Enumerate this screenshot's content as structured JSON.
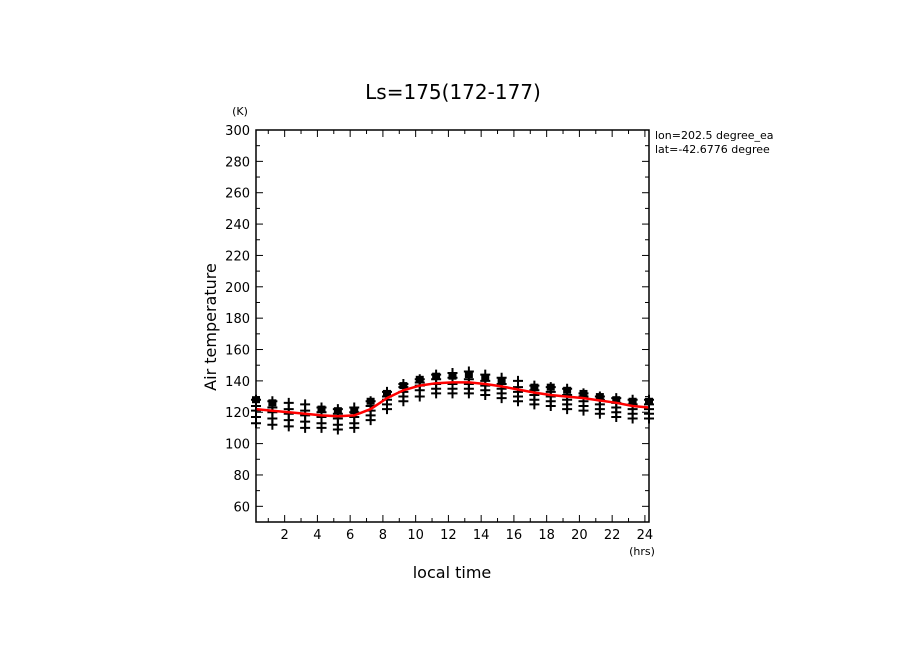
{
  "chart_data": {
    "type": "scatter",
    "title": "Ls=175(172-177)",
    "xlabel": "local time",
    "ylabel": "Air temperature",
    "x_unit": "(hrs)",
    "y_unit": "(K)",
    "xlim": [
      0.25,
      24.25
    ],
    "ylim": [
      50,
      300
    ],
    "x_ticks": [
      2,
      4,
      6,
      8,
      10,
      12,
      14,
      16,
      18,
      20,
      22,
      24
    ],
    "y_ticks": [
      60,
      80,
      100,
      120,
      140,
      160,
      180,
      200,
      220,
      240,
      260,
      280,
      300
    ],
    "annotations": [
      "lon=202.5 degree_ea",
      "lat=-42.6776 degree"
    ],
    "grid": false,
    "x": [
      0.25,
      1.25,
      2.25,
      3.25,
      4.25,
      5.25,
      6.25,
      7.25,
      8.25,
      9.25,
      10.25,
      11.25,
      12.25,
      13.25,
      14.25,
      15.25,
      16.25,
      17.25,
      18.25,
      19.25,
      20.25,
      21.25,
      22.25,
      23.25,
      24.25
    ],
    "series": [
      {
        "marker": "plus",
        "values": [
          128,
          127,
          126,
          125,
          123,
          122,
          123,
          127,
          133,
          138,
          141,
          144,
          145,
          146,
          144,
          142,
          140,
          137,
          136,
          135,
          132,
          130,
          129,
          128,
          128
        ]
      },
      {
        "marker": "plus",
        "values": [
          124,
          123,
          122,
          121,
          120,
          119,
          120,
          124,
          130,
          136,
          139,
          141,
          142,
          141,
          140,
          138,
          136,
          134,
          133,
          131,
          130,
          128,
          126,
          125,
          125
        ]
      },
      {
        "marker": "plus",
        "values": [
          121,
          120,
          119,
          118,
          117,
          116,
          117,
          121,
          128,
          133,
          137,
          138,
          138,
          138,
          137,
          135,
          133,
          131,
          130,
          128,
          127,
          125,
          123,
          122,
          122
        ]
      },
      {
        "marker": "plus",
        "values": [
          117,
          116,
          115,
          114,
          113,
          112,
          113,
          118,
          125,
          130,
          134,
          135,
          135,
          135,
          134,
          132,
          130,
          128,
          127,
          125,
          124,
          122,
          120,
          119,
          119
        ]
      },
      {
        "marker": "plus",
        "values": [
          113,
          112,
          111,
          110,
          110,
          109,
          110,
          115,
          122,
          127,
          130,
          132,
          132,
          132,
          131,
          129,
          127,
          125,
          124,
          122,
          121,
          119,
          117,
          116,
          116
        ]
      },
      {
        "marker": "square",
        "values": [
          128,
          126,
          null,
          null,
          122,
          121,
          121,
          127,
          132,
          137,
          141,
          143,
          143,
          144,
          142,
          140,
          null,
          136,
          136,
          134,
          132,
          130,
          128,
          127,
          127
        ]
      }
    ],
    "fit_line": {
      "color": "#ff0000",
      "values": [
        122,
        121,
        120,
        119,
        118,
        117.5,
        118,
        122,
        129,
        134,
        137,
        138.5,
        139,
        139,
        138,
        136.5,
        134.5,
        132.5,
        131,
        130,
        129,
        127.5,
        126,
        124,
        123
      ]
    }
  }
}
